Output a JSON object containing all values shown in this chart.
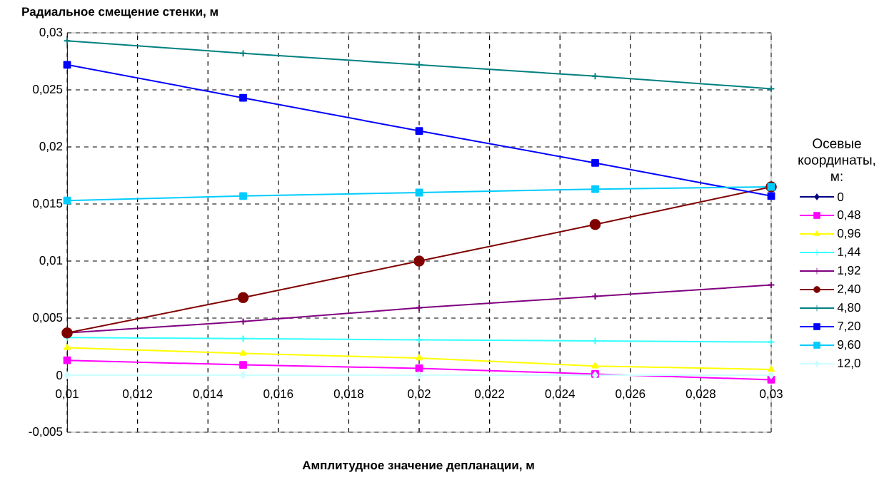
{
  "chart_data": {
    "type": "line",
    "title": "Радиальное смещение стенки, м",
    "xlabel": "Амплитудное значение депланации, м",
    "legend_title": "Осевые координаты, м:",
    "x": [
      0.01,
      0.015,
      0.02,
      0.025,
      0.03
    ],
    "series": [
      {
        "name": "0",
        "color": "#000080",
        "marker": "diamond",
        "values": [
          null,
          null,
          null,
          null,
          null
        ]
      },
      {
        "name": "0,48",
        "color": "#ff00ff",
        "marker": "square",
        "values": [
          0.0013,
          0.0009,
          0.0006,
          0.0001,
          -0.0004
        ]
      },
      {
        "name": "0,96",
        "color": "#ffff00",
        "marker": "triangle",
        "values": [
          0.0024,
          0.0019,
          0.0015,
          0.0008,
          0.0005
        ]
      },
      {
        "name": "1,44",
        "color": "#33ffff",
        "marker": "cross",
        "values": [
          0.0033,
          0.0032,
          0.0031,
          0.003,
          0.0029
        ]
      },
      {
        "name": "1,92",
        "color": "#800080",
        "marker": "cross",
        "values": [
          0.0037,
          0.0047,
          0.0059,
          0.0069,
          0.0079
        ]
      },
      {
        "name": "2,40",
        "color": "#800000",
        "marker": "circle",
        "values": [
          0.0037,
          0.0068,
          0.01,
          0.0132,
          0.0165
        ]
      },
      {
        "name": "4,80",
        "color": "#008080",
        "marker": "cross",
        "values": [
          0.0293,
          0.0282,
          0.0272,
          0.0262,
          0.0251
        ]
      },
      {
        "name": "7,20",
        "color": "#0000ff",
        "marker": "square",
        "values": [
          0.0272,
          0.0243,
          0.0214,
          0.0186,
          0.0157
        ]
      },
      {
        "name": "9,60",
        "color": "#00ccff",
        "marker": "square",
        "values": [
          0.0153,
          0.0157,
          0.016,
          0.0163,
          0.0165
        ]
      },
      {
        "name": "12,0",
        "color": "#ccffff",
        "marker": "diamond",
        "values": [
          0,
          0,
          0,
          0,
          0
        ]
      }
    ],
    "xlim": [
      0.01,
      0.03
    ],
    "xticks": [
      {
        "value": 0.01,
        "label": "0,01"
      },
      {
        "value": 0.012,
        "label": "0,012"
      },
      {
        "value": 0.014,
        "label": "0,014"
      },
      {
        "value": 0.016,
        "label": "0,016"
      },
      {
        "value": 0.018,
        "label": "0,018"
      },
      {
        "value": 0.02,
        "label": "0,02"
      },
      {
        "value": 0.022,
        "label": "0,022"
      },
      {
        "value": 0.024,
        "label": "0,024"
      },
      {
        "value": 0.026,
        "label": "0,026"
      },
      {
        "value": 0.028,
        "label": "0,028"
      },
      {
        "value": 0.03,
        "label": "0,03"
      }
    ],
    "ylim": [
      -0.005,
      0.03
    ],
    "yticks": [
      {
        "value": -0.005,
        "label": "-0,005"
      },
      {
        "value": 0,
        "label": "0"
      },
      {
        "value": 0.005,
        "label": "0,005"
      },
      {
        "value": 0.01,
        "label": "0,01"
      },
      {
        "value": 0.015,
        "label": "0,015"
      },
      {
        "value": 0.02,
        "label": "0,02"
      },
      {
        "value": 0.025,
        "label": "0,025"
      },
      {
        "value": 0.03,
        "label": "0,03"
      }
    ],
    "grid": true,
    "legend": "right",
    "line_style": "solid"
  }
}
